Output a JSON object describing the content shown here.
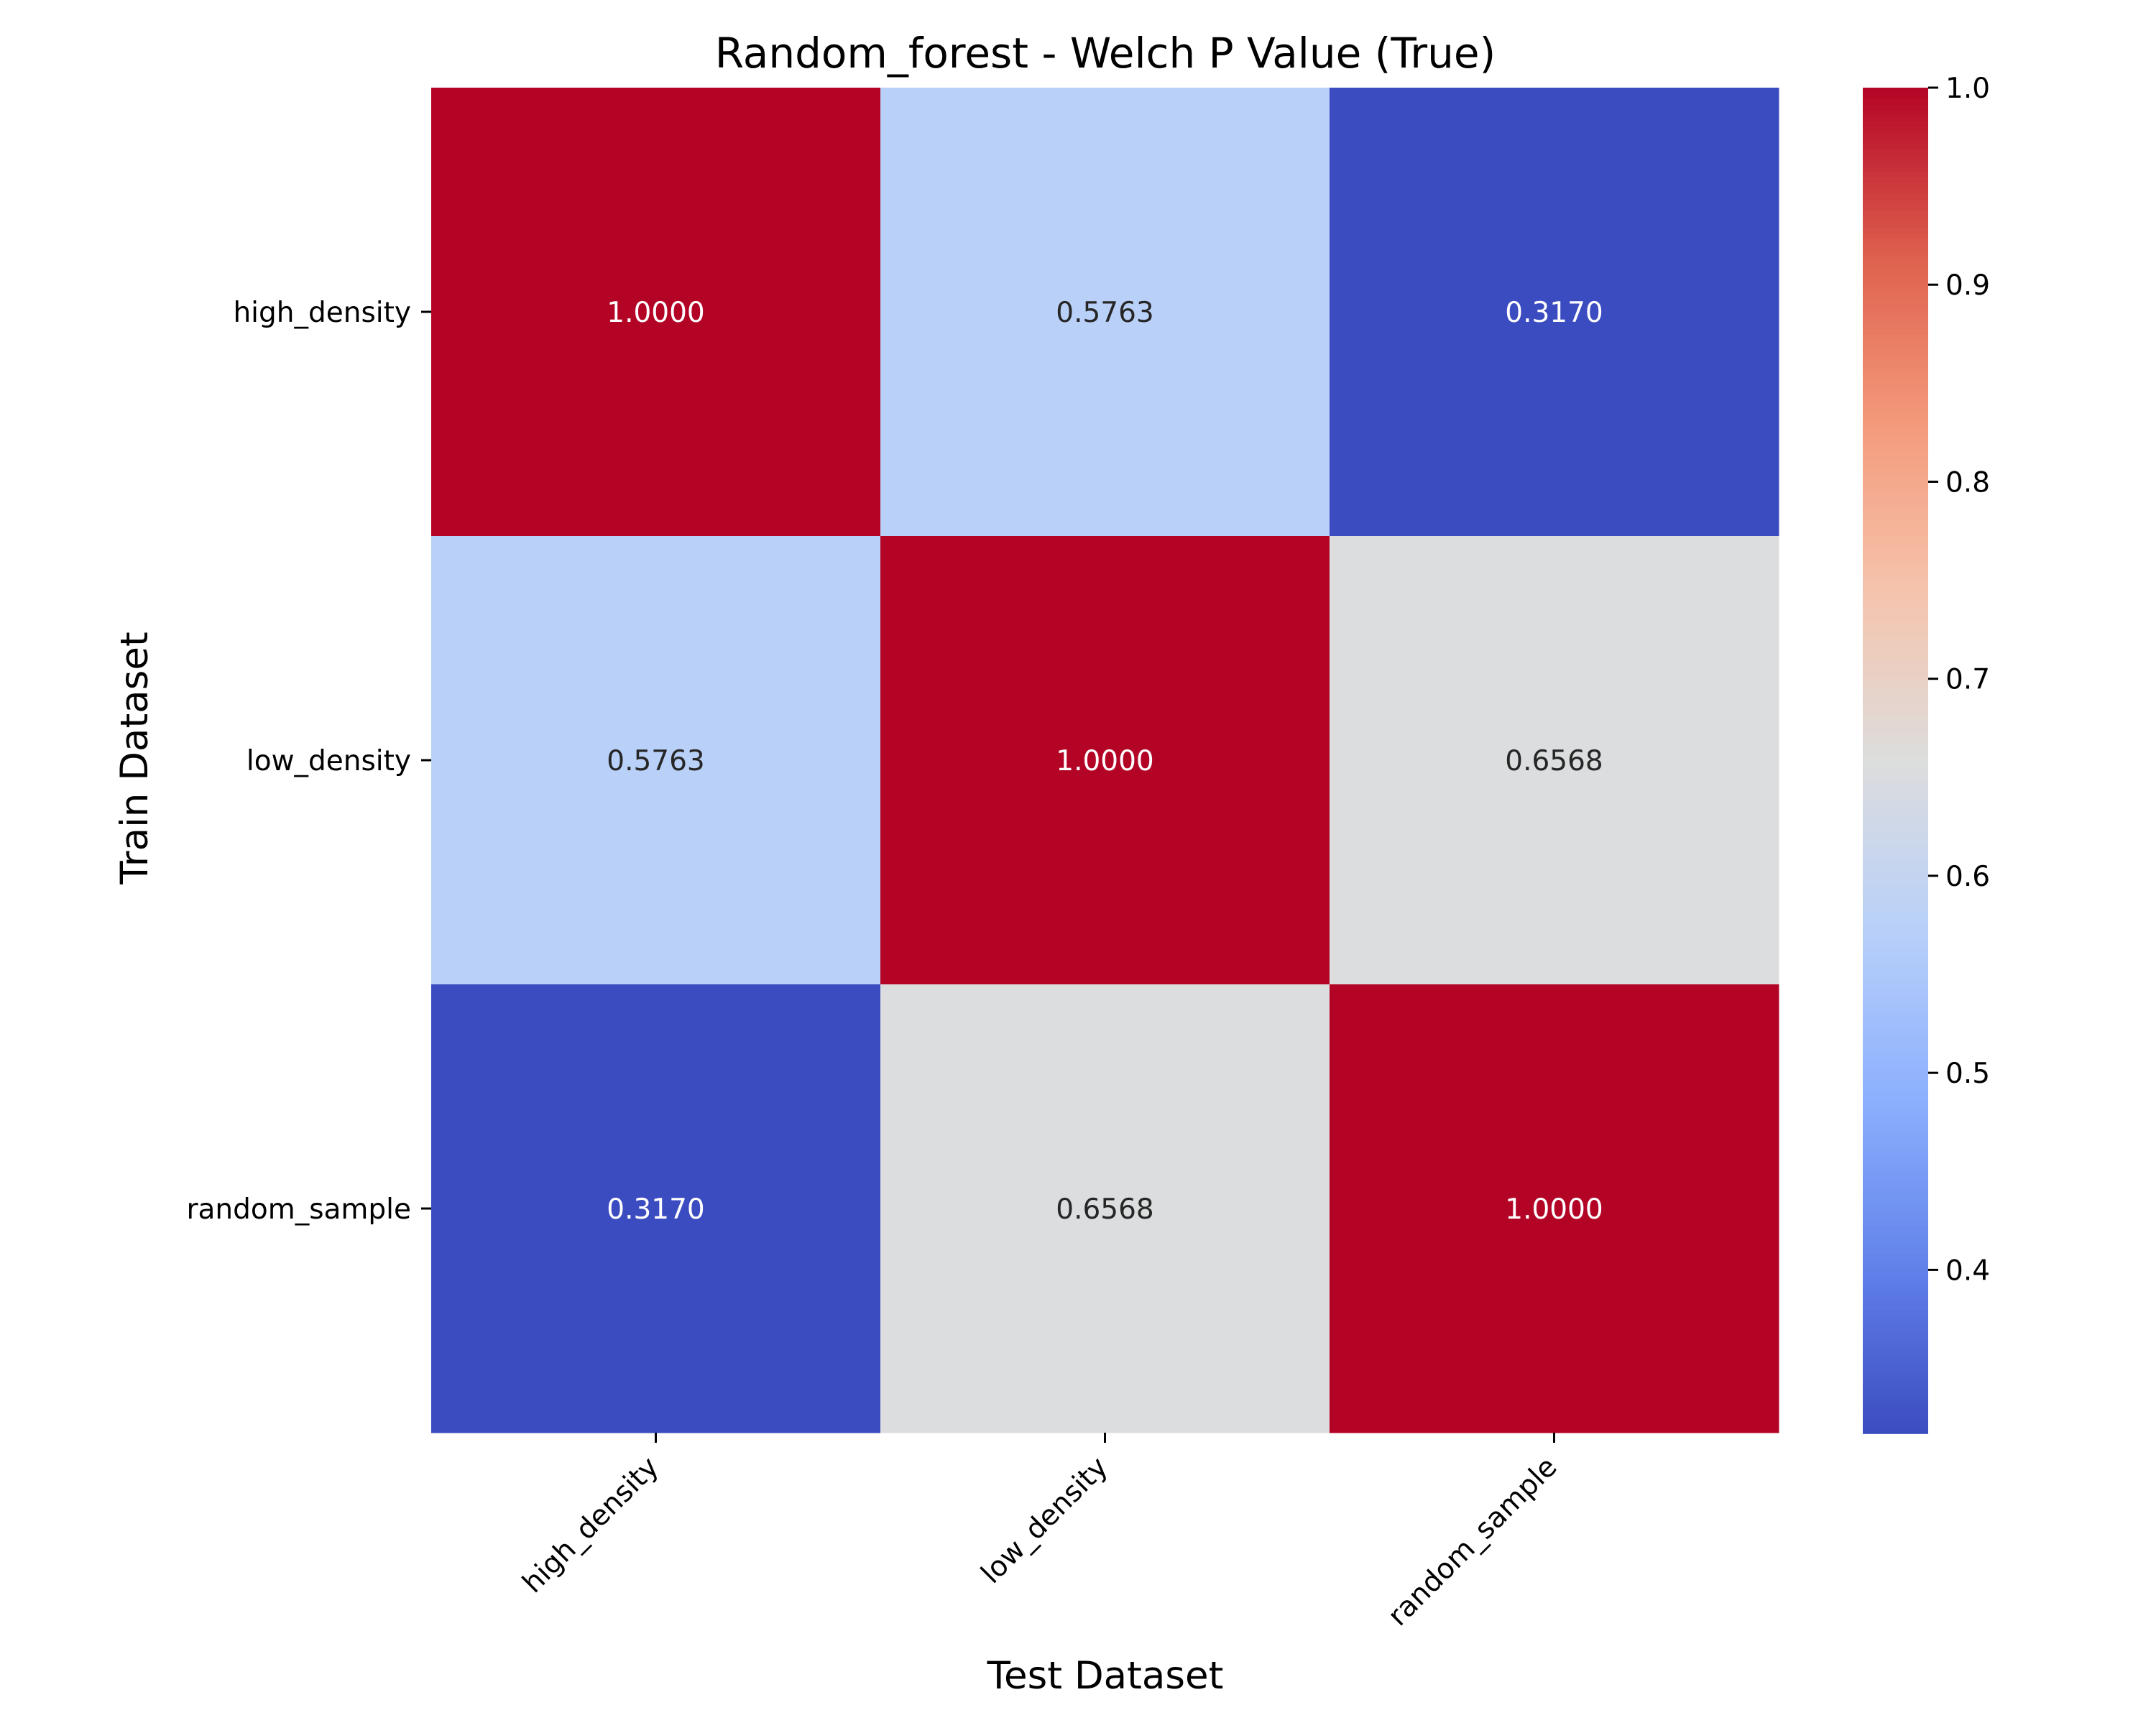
{
  "chart_data": {
    "type": "heatmap",
    "title": "Random_forest - Welch P Value (True)",
    "xlabel": "Test Dataset",
    "ylabel": "Train Dataset",
    "x_categories": [
      "high_density",
      "low_density",
      "random_sample"
    ],
    "y_categories": [
      "high_density",
      "low_density",
      "random_sample"
    ],
    "values": [
      [
        1.0,
        0.5763,
        0.317
      ],
      [
        0.5763,
        1.0,
        0.6568
      ],
      [
        0.317,
        0.6568,
        1.0
      ]
    ],
    "cell_labels": [
      [
        "1.0000",
        "0.5763",
        "0.3170"
      ],
      [
        "0.5763",
        "1.0000",
        "0.6568"
      ],
      [
        "0.3170",
        "0.6568",
        "1.0000"
      ]
    ],
    "colormap": "coolwarm",
    "colorbar": {
      "min": 0.317,
      "max": 1.0,
      "ticks": [
        0.4,
        0.5,
        0.6,
        0.7,
        0.8,
        0.9,
        1.0
      ],
      "tick_labels": [
        "0.4",
        "0.5",
        "0.6",
        "0.7",
        "0.8",
        "0.9",
        "1.0"
      ]
    },
    "colors": {
      "low": "#3b4cc0",
      "mid": "#dddddd",
      "high": "#b40426",
      "label_light": "#ffffff",
      "label_dark": "#262626"
    }
  }
}
